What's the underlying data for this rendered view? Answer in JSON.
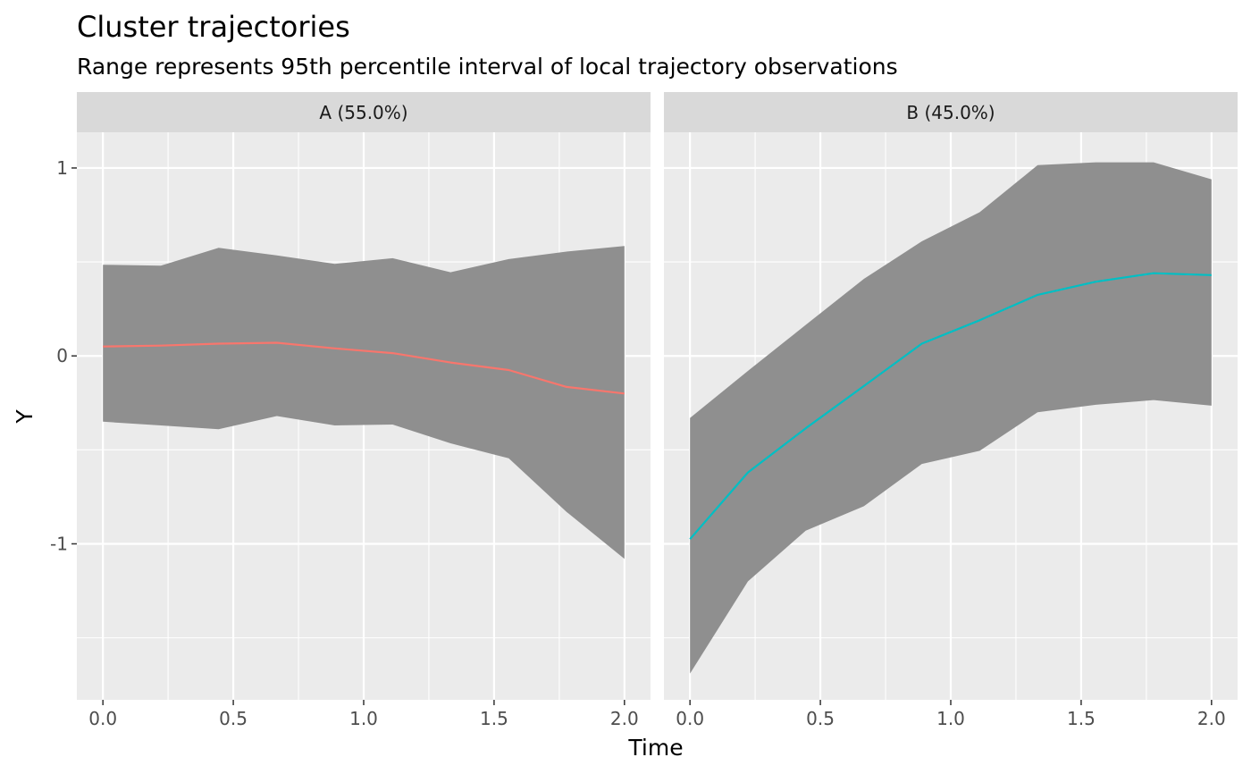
{
  "chart_data": {
    "type": "line",
    "title": "Cluster trajectories",
    "subtitle": "Range represents 95th percentile interval of local trajectory observations",
    "xlabel": "Time",
    "ylabel": "Y",
    "xlim": [
      -0.1,
      2.1
    ],
    "ylim": [
      -1.83,
      1.19
    ],
    "x_ticks": [
      0.0,
      0.5,
      1.0,
      1.5,
      2.0
    ],
    "x_tick_labels": [
      "0.0",
      "0.5",
      "1.0",
      "1.5",
      "2.0"
    ],
    "y_ticks": [
      1,
      0,
      -1
    ],
    "y_tick_labels": [
      "1",
      "0",
      "-1"
    ],
    "grid": true,
    "band_color": "#8f8f8f",
    "panel_background": "#ebebeb",
    "strip_background": "#d9d9d9",
    "panels": [
      {
        "strip_label": "A (55.0%)",
        "color": "#F8766D",
        "x": [
          0.0,
          0.222,
          0.444,
          0.667,
          0.889,
          1.111,
          1.333,
          1.556,
          1.778,
          2.0
        ],
        "y": [
          0.05,
          0.055,
          0.065,
          0.07,
          0.04,
          0.015,
          -0.035,
          -0.075,
          -0.165,
          -0.2
        ],
        "upper": [
          0.485,
          0.48,
          0.575,
          0.535,
          0.49,
          0.52,
          0.445,
          0.515,
          0.555,
          0.585
        ],
        "lower": [
          -0.35,
          -0.37,
          -0.39,
          -0.32,
          -0.37,
          -0.365,
          -0.465,
          -0.545,
          -0.83,
          -1.08
        ]
      },
      {
        "strip_label": "B (45.0%)",
        "color": "#00BFC4",
        "x": [
          0.0,
          0.222,
          0.444,
          0.667,
          0.889,
          1.111,
          1.333,
          1.556,
          1.778,
          2.0
        ],
        "y": [
          -0.975,
          -0.62,
          -0.385,
          -0.16,
          0.065,
          0.19,
          0.325,
          0.395,
          0.44,
          0.43
        ],
        "upper": [
          -0.33,
          -0.08,
          0.165,
          0.41,
          0.61,
          0.765,
          1.015,
          1.03,
          1.03,
          0.94
        ],
        "lower": [
          -1.69,
          -1.2,
          -0.93,
          -0.8,
          -0.575,
          -0.505,
          -0.3,
          -0.26,
          -0.235,
          -0.265
        ]
      }
    ]
  }
}
